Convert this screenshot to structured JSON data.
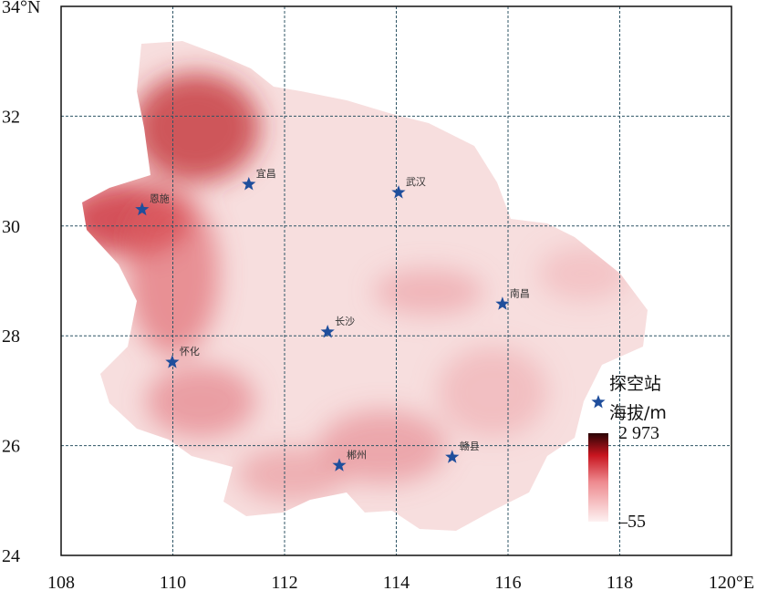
{
  "chart_data": {
    "type": "map",
    "xlim": [
      108,
      120
    ],
    "ylim": [
      24,
      34
    ],
    "xticks": [
      108,
      110,
      112,
      114,
      116,
      118,
      {
        "value": 120,
        "label": "120°E"
      }
    ],
    "yticks": [
      24,
      26,
      28,
      30,
      32,
      {
        "value": 34,
        "label": "34°N"
      }
    ],
    "grid": true,
    "station_color": "#1f4e9c",
    "stations": [
      {
        "name": "恩施",
        "x": 109.45,
        "y": 30.3
      },
      {
        "name": "宜昌",
        "x": 111.36,
        "y": 30.76
      },
      {
        "name": "武汉",
        "x": 114.04,
        "y": 30.61
      },
      {
        "name": "南昌",
        "x": 115.9,
        "y": 28.58
      },
      {
        "name": "长沙",
        "x": 112.77,
        "y": 28.07
      },
      {
        "name": "怀化",
        "x": 109.99,
        "y": 27.52
      },
      {
        "name": "郴州",
        "x": 112.98,
        "y": 25.64
      },
      {
        "name": "赣县",
        "x": 115.0,
        "y": 25.79
      }
    ],
    "legend": {
      "marker_label": "探空站",
      "colorbar_title": "海拔/m",
      "colorbar_ticks": [
        {
          "value": 2973,
          "label": "2 973"
        },
        {
          "value": -55,
          "label": "–55"
        }
      ]
    }
  }
}
